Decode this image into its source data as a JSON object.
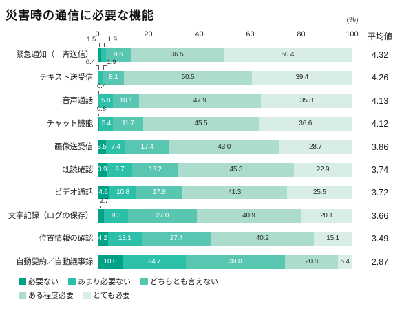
{
  "title": "災害時の通信に必要な機能",
  "percent_label": "(%)",
  "average_header": "平均値",
  "axis_ticks": [
    "0",
    "20",
    "40",
    "60",
    "80",
    "100"
  ],
  "legend": {
    "items": [
      {
        "label": "必要ない",
        "color": "#00a287"
      },
      {
        "label": "あまり必要ない",
        "color": "#2dc0a8"
      },
      {
        "label": "どちらとも言えない",
        "color": "#58c6b0"
      },
      {
        "label": "ある程度必要",
        "color": "#abdccd"
      },
      {
        "label": "とても必要",
        "color": "#d8ede5"
      }
    ]
  },
  "chart_data": {
    "type": "bar",
    "stacked": true,
    "orientation": "horizontal",
    "title": "災害時の通信に必要な機能",
    "unit": "%",
    "xlim": [
      0,
      100
    ],
    "grid": false,
    "legend_position": "bottom",
    "series_names": [
      "必要ない",
      "あまり必要ない",
      "どちらとも言えない",
      "ある程度必要",
      "とても必要"
    ],
    "colors": [
      "#00a287",
      "#2dc0a8",
      "#58c6b0",
      "#abdccd",
      "#d8ede5"
    ],
    "value_text_colors": [
      "#ffffff",
      "#ffffff",
      "#ffffff",
      "#2e2e2e",
      "#2e2e2e"
    ],
    "average_column_label": "平均値",
    "rows": [
      {
        "label": "緊急通知（一斉送信）",
        "values": [
          1.5,
          1.9,
          9.6,
          36.5,
          50.4
        ],
        "average": 4.32,
        "callouts": 2
      },
      {
        "label": "テキスト送受信",
        "values": [
          0.4,
          1.9,
          8.1,
          50.5,
          39.4
        ],
        "average": 4.26,
        "callouts": 2
      },
      {
        "label": "音声通話",
        "values": [
          0.4,
          5.8,
          10.1,
          47.9,
          35.8
        ],
        "average": 4.13,
        "callouts": 1
      },
      {
        "label": "チャット機能",
        "values": [
          0.8,
          5.4,
          11.7,
          45.5,
          36.6
        ],
        "average": 4.12,
        "callouts": 1
      },
      {
        "label": "画像送受信",
        "values": [
          3.5,
          7.4,
          17.4,
          43.0,
          28.7
        ],
        "average": 3.86,
        "callouts": 0
      },
      {
        "label": "既読確認",
        "values": [
          3.9,
          9.7,
          18.2,
          45.3,
          22.9
        ],
        "average": 3.74,
        "callouts": 0
      },
      {
        "label": "ビデオ通話",
        "values": [
          4.6,
          10.8,
          17.8,
          41.3,
          25.5
        ],
        "average": 3.72,
        "callouts": 0
      },
      {
        "label": "文字記録（ログの保存）",
        "values": [
          2.7,
          9.3,
          27.0,
          40.9,
          20.1
        ],
        "average": 3.66,
        "callouts": 1
      },
      {
        "label": "位置情報の確認",
        "values": [
          4.2,
          13.1,
          27.4,
          40.2,
          15.1
        ],
        "average": 3.49,
        "callouts": 0
      },
      {
        "label": "自動要約／自動議事録",
        "values": [
          10.0,
          24.7,
          39.0,
          20.8,
          5.4
        ],
        "average": 2.87,
        "callouts": 0
      }
    ]
  }
}
